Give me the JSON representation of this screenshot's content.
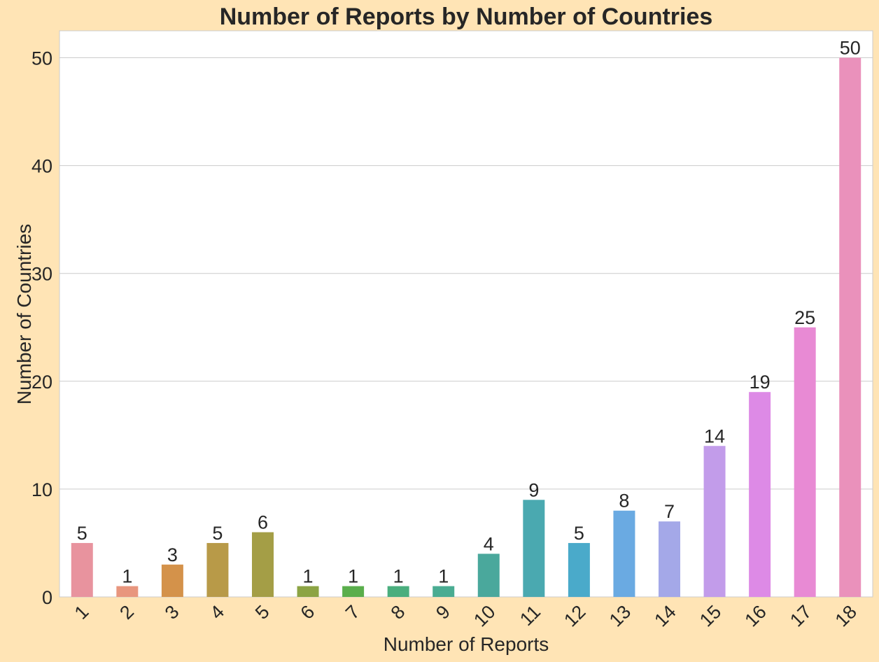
{
  "chart_data": {
    "type": "bar",
    "title": "Number of Reports by Number of Countries",
    "xlabel": "Number of Reports",
    "ylabel": "Number of Countries",
    "categories": [
      "1",
      "2",
      "3",
      "4",
      "5",
      "6",
      "7",
      "8",
      "9",
      "10",
      "11",
      "12",
      "13",
      "14",
      "15",
      "16",
      "17",
      "18"
    ],
    "values": [
      5,
      1,
      3,
      5,
      6,
      1,
      1,
      1,
      1,
      4,
      9,
      5,
      8,
      7,
      14,
      19,
      25,
      50
    ],
    "ylim": [
      0,
      52.5
    ],
    "yticks": [
      0,
      10,
      20,
      30,
      40,
      50
    ],
    "grid": "horizontal",
    "colors": [
      "#E8939E",
      "#E8967E",
      "#D4924A",
      "#B89A48",
      "#A49E46",
      "#8CA444",
      "#5AAE4C",
      "#4AAE7E",
      "#4AAC92",
      "#4AA89C",
      "#4AA9B0",
      "#4AAACA",
      "#6AAAE2",
      "#A4A8E8",
      "#C29CEA",
      "#DD8AE6",
      "#E88AD4",
      "#EA91BB"
    ]
  },
  "colors": {
    "background": "#FFE4B5",
    "plot_background": "#FFFFFF",
    "grid": "#CCCCCC",
    "text": "#262626"
  }
}
